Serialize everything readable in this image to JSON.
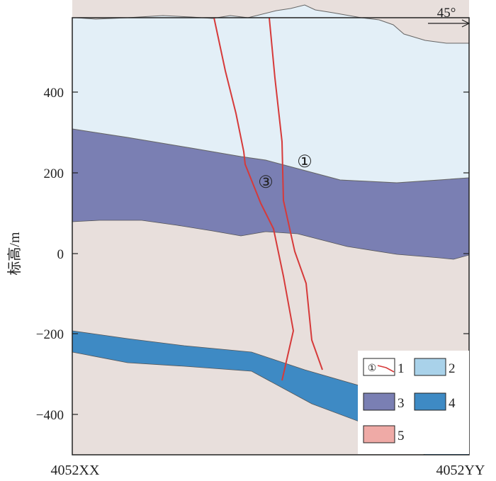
{
  "y_axis": {
    "label": "标高/m",
    "ticks": [
      "400",
      "200",
      "0",
      "−200",
      "−400"
    ]
  },
  "x_axis": {
    "left_label": "4052XX",
    "right_label": "4052YY"
  },
  "orientation": {
    "label": "45°"
  },
  "fault_labels": {
    "fault1": "①",
    "fault3": "③"
  },
  "legend": {
    "items": [
      {
        "symbol": "①",
        "label": "1",
        "color": "#d63a3a"
      },
      {
        "label": "2",
        "color": "#a9d2ea"
      },
      {
        "label": "3",
        "color": "#7a7fb3"
      },
      {
        "label": "4",
        "color": "#3e8ac4"
      },
      {
        "label": "5",
        "color": "#efaaa6"
      }
    ]
  },
  "colors": {
    "unit_top": "#e3eff7",
    "unit_band": "#7a7fb3",
    "unit_lower": "#e8dfdc",
    "unit_deep": "#3e8ac4",
    "fault_line": "#d63a3a",
    "contact_line": "#666666"
  }
}
